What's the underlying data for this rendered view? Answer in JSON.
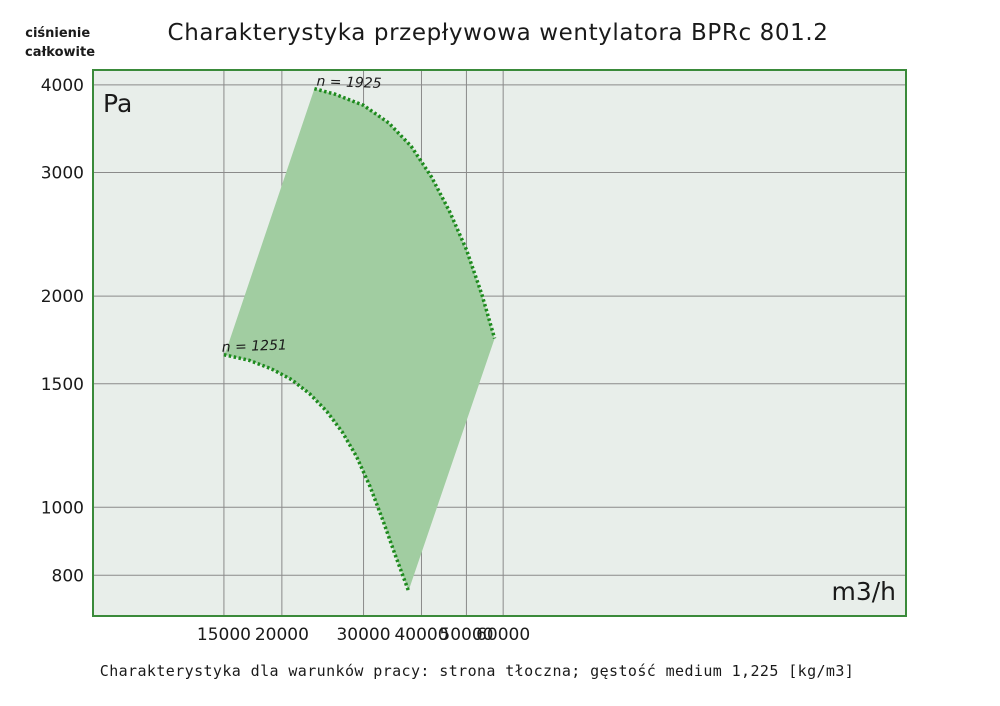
{
  "chart_data": {
    "type": "area",
    "title": "Charakterystyka przepływowa wentylatora BPRc 801.2",
    "ylabel": "ciśnienie całkowite",
    "y_unit": "Pa",
    "x_unit": "m3/h",
    "footnote": "Charakterystyka dla warunków pracy: strona tłoczna; gęstość medium 1,225 [kg/m3]",
    "x_scale": "log",
    "y_scale": "log",
    "xlim": [
      15000,
      60000
    ],
    "ylim": [
      700,
      4200
    ],
    "x_ticks": [
      15000,
      20000,
      30000,
      40000,
      50000,
      60000
    ],
    "y_ticks": [
      800,
      1000,
      1500,
      2000,
      3000,
      4000
    ],
    "x_tick_labels": [
      "15000",
      "20000",
      "30000",
      "40000",
      "50000",
      "60000"
    ],
    "y_tick_labels": [
      "800",
      "1000",
      "1500",
      "2000",
      "3000",
      "4000"
    ],
    "grid": true,
    "region_color": "#a1cda1",
    "plot_background": "#e8eeea",
    "frame_color": "#3a8a3a",
    "curve_color": "#1d8a1d",
    "series": [
      {
        "name": "n = 1925",
        "x": [
          23500,
          26000,
          30000,
          34000,
          38000,
          42000,
          46000,
          50000,
          54000,
          57500
        ],
        "y": [
          3950,
          3880,
          3740,
          3530,
          3270,
          2960,
          2640,
          2330,
          2010,
          1740
        ]
      },
      {
        "name": "n = 1251",
        "x": [
          15000,
          17000,
          19000,
          21000,
          23000,
          25000,
          27000,
          29000,
          31000,
          33000,
          35000,
          37500
        ],
        "y": [
          1650,
          1620,
          1575,
          1520,
          1450,
          1370,
          1280,
          1180,
          1070,
          960,
          860,
          760
        ]
      }
    ],
    "envelope_edges": [
      {
        "x": [
          15200,
          23500
        ],
        "y": [
          1680,
          3950
        ]
      },
      {
        "x": [
          37500,
          57500
        ],
        "y": [
          760,
          1740
        ]
      }
    ]
  }
}
